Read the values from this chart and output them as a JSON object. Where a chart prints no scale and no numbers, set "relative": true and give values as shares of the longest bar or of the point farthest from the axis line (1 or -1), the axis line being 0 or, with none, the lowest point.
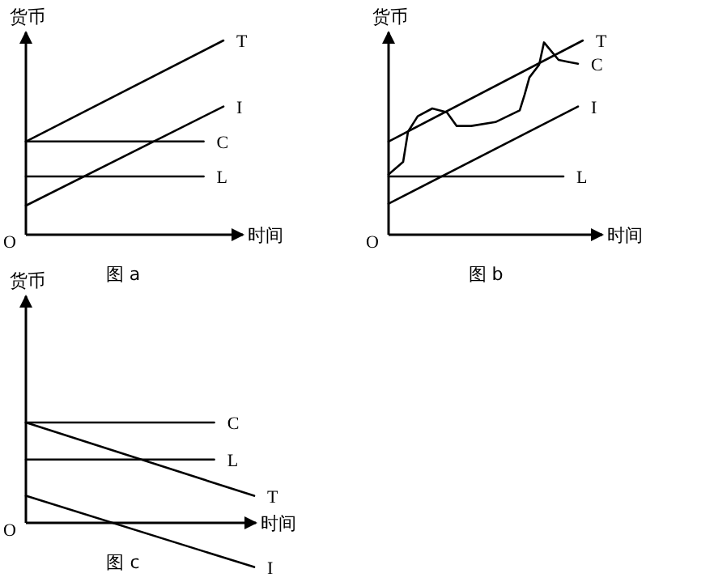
{
  "chart_data": [
    {
      "type": "line",
      "title": "图 a",
      "xlabel": "时间",
      "ylabel": "货币",
      "relative": true,
      "annotations": [
        "O"
      ],
      "categories": [
        null,
        null,
        null,
        null,
        null,
        null,
        null,
        null,
        null,
        null,
        null,
        null,
        null,
        null,
        null,
        null,
        null,
        null,
        null,
        null,
        null,
        null,
        null,
        null,
        null,
        null,
        null,
        null,
        null,
        null,
        null,
        null,
        null,
        null,
        null,
        null,
        null,
        null,
        null,
        null,
        null
      ],
      "series": [
        {
          "name": "T",
          "color": "#000000",
          "values": [
            0.48,
            null,
            null,
            null,
            null,
            null,
            null,
            null,
            null,
            null,
            null,
            null,
            null,
            null,
            null,
            null,
            null,
            null,
            null,
            null,
            null,
            null,
            null,
            null,
            null,
            null,
            null,
            null,
            null,
            null,
            null,
            null,
            null,
            null,
            null,
            null,
            null,
            null,
            null,
            null,
            1.0
          ]
        },
        {
          "name": "I",
          "color": "#000000",
          "values": [
            0.15,
            null,
            null,
            null,
            null,
            null,
            null,
            null,
            null,
            null,
            null,
            null,
            null,
            null,
            null,
            null,
            null,
            null,
            null,
            null,
            null,
            null,
            null,
            null,
            null,
            null,
            null,
            null,
            null,
            null,
            null,
            null,
            null,
            null,
            null,
            null,
            null,
            null,
            null,
            null,
            0.66
          ]
        },
        {
          "name": "C",
          "color": "#000000",
          "values": [
            0.48,
            null,
            null,
            null,
            null,
            null,
            null,
            null,
            null,
            null,
            null,
            null,
            null,
            null,
            null,
            null,
            null,
            null,
            null,
            null,
            null,
            null,
            null,
            null,
            null,
            null,
            null,
            null,
            null,
            null,
            null,
            null,
            null,
            null,
            null,
            null,
            0.48,
            null,
            null,
            null,
            null
          ]
        },
        {
          "name": "L",
          "color": "#000000",
          "values": [
            0.3,
            null,
            null,
            null,
            null,
            null,
            null,
            null,
            null,
            null,
            null,
            null,
            null,
            null,
            null,
            null,
            null,
            null,
            null,
            null,
            null,
            null,
            null,
            null,
            null,
            null,
            null,
            null,
            null,
            null,
            null,
            null,
            null,
            null,
            null,
            null,
            0.3,
            null,
            null,
            null,
            null
          ]
        }
      ]
    },
    {
      "type": "line",
      "title": "图 b",
      "xlabel": "时间",
      "ylabel": "货币",
      "relative": true,
      "annotations": [
        "O"
      ],
      "categories": [
        null,
        null,
        null,
        null,
        null,
        null,
        null,
        null,
        null,
        null,
        null,
        null,
        null,
        null,
        null,
        null,
        null,
        null,
        null,
        null,
        null,
        null,
        null,
        null,
        null,
        null,
        null,
        null,
        null,
        null,
        null,
        null,
        null,
        null,
        null,
        null,
        null,
        null,
        null,
        null,
        null
      ],
      "series": [
        {
          "name": "T",
          "color": "#000000",
          "values": [
            0.48,
            null,
            null,
            null,
            null,
            null,
            null,
            null,
            null,
            null,
            null,
            null,
            null,
            null,
            null,
            null,
            null,
            null,
            null,
            null,
            null,
            null,
            null,
            null,
            null,
            null,
            null,
            null,
            null,
            null,
            null,
            null,
            null,
            null,
            null,
            null,
            null,
            null,
            null,
            null,
            1.0
          ]
        },
        {
          "name": "C",
          "color": "#000000",
          "values": [
            0.31,
            null,
            null,
            0.375,
            0.53,
            null,
            0.61,
            null,
            null,
            0.65,
            null,
            null,
            0.63,
            null,
            0.56,
            null,
            null,
            0.56,
            null,
            null,
            null,
            null,
            0.58,
            null,
            null,
            null,
            null,
            0.64,
            0.72,
            0.81,
            null,
            0.875,
            0.99,
            0.96,
            null,
            0.9,
            null,
            0.89,
            null,
            0.88,
            null
          ]
        },
        {
          "name": "I",
          "color": "#000000",
          "values": [
            0.16,
            null,
            null,
            null,
            null,
            null,
            null,
            null,
            null,
            null,
            null,
            null,
            null,
            null,
            null,
            null,
            null,
            null,
            null,
            null,
            null,
            null,
            null,
            null,
            null,
            null,
            null,
            null,
            null,
            null,
            null,
            null,
            null,
            null,
            null,
            null,
            null,
            null,
            null,
            0.66,
            null
          ]
        },
        {
          "name": "L",
          "color": "#000000",
          "values": [
            0.3,
            null,
            null,
            null,
            null,
            null,
            null,
            null,
            null,
            null,
            null,
            null,
            null,
            null,
            null,
            null,
            null,
            null,
            null,
            null,
            null,
            null,
            null,
            null,
            null,
            null,
            null,
            null,
            null,
            null,
            null,
            null,
            null,
            null,
            null,
            null,
            0.3,
            null,
            null,
            null,
            null
          ]
        }
      ]
    },
    {
      "type": "line",
      "title": "图 c",
      "xlabel": "时间",
      "ylabel": "货币",
      "relative": true,
      "annotations": [
        "O"
      ],
      "categories": [
        null,
        null,
        null,
        null,
        null,
        null,
        null,
        null,
        null,
        null,
        null,
        null,
        null,
        null,
        null,
        null,
        null,
        null,
        null,
        null,
        null,
        null,
        null,
        null,
        null,
        null,
        null,
        null,
        null,
        null,
        null,
        null,
        null,
        null,
        null,
        null,
        null,
        null,
        null,
        null,
        null
      ],
      "series": [
        {
          "name": "C",
          "color": "#000000",
          "values": [
            1.0,
            null,
            null,
            null,
            null,
            null,
            null,
            null,
            null,
            null,
            null,
            null,
            null,
            null,
            null,
            null,
            null,
            null,
            null,
            null,
            null,
            null,
            null,
            null,
            null,
            null,
            null,
            null,
            null,
            null,
            null,
            null,
            null,
            1.0,
            null,
            null,
            null,
            null,
            null,
            null,
            null
          ]
        },
        {
          "name": "L",
          "color": "#000000",
          "values": [
            0.63,
            null,
            null,
            null,
            null,
            null,
            null,
            null,
            null,
            null,
            null,
            null,
            null,
            null,
            null,
            null,
            null,
            null,
            null,
            null,
            null,
            null,
            null,
            null,
            null,
            null,
            null,
            null,
            null,
            null,
            null,
            null,
            null,
            0.63,
            null,
            null,
            null,
            null,
            null,
            null,
            null
          ]
        },
        {
          "name": "T",
          "color": "#000000",
          "values": [
            1.0,
            null,
            null,
            null,
            null,
            null,
            null,
            null,
            null,
            null,
            null,
            null,
            null,
            null,
            null,
            null,
            null,
            null,
            null,
            null,
            null,
            null,
            null,
            null,
            null,
            null,
            null,
            null,
            null,
            null,
            null,
            null,
            null,
            null,
            null,
            null,
            null,
            null,
            null,
            null,
            0.27
          ]
        },
        {
          "name": "I",
          "color": "#000000",
          "values": [
            0.27,
            null,
            null,
            null,
            null,
            null,
            null,
            null,
            null,
            null,
            null,
            null,
            null,
            null,
            null,
            null,
            null,
            null,
            null,
            null,
            null,
            null,
            null,
            null,
            null,
            null,
            null,
            null,
            null,
            null,
            null,
            null,
            null,
            null,
            null,
            null,
            null,
            null,
            null,
            null,
            -0.44
          ]
        }
      ]
    }
  ]
}
